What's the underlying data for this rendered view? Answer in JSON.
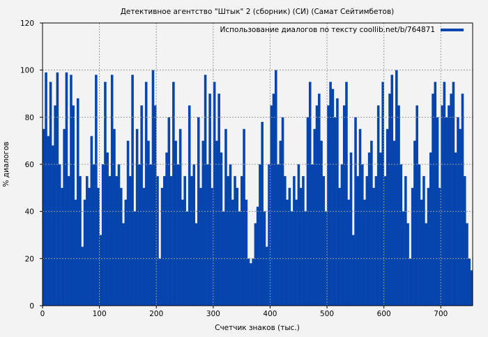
{
  "chart_data": {
    "type": "bar",
    "title": "Детективное агентство \"Штык\" 2 (сборник) (СИ) (Самат Сейтимбетов)",
    "xlabel": "Счетчик знаков (тыс.)",
    "ylabel": "% диалогов",
    "xlim": [
      0,
      756
    ],
    "ylim": [
      0,
      120
    ],
    "xticks": [
      0,
      100,
      200,
      300,
      400,
      500,
      600,
      700
    ],
    "yticks": [
      0,
      20,
      40,
      60,
      80,
      100,
      120
    ],
    "grid": true,
    "legend_position": "top-right",
    "bar_color": "#0645ad",
    "x_step": 4,
    "series": [
      {
        "name": "Использование диалогов по тексту coollib.net/b/764871",
        "x_start": 0,
        "values": [
          75,
          99,
          72,
          95,
          68,
          85,
          99,
          60,
          50,
          75,
          99,
          55,
          98,
          85,
          45,
          88,
          55,
          25,
          45,
          55,
          50,
          72,
          60,
          98,
          50,
          30,
          60,
          95,
          65,
          55,
          98,
          75,
          55,
          60,
          50,
          35,
          45,
          70,
          55,
          98,
          40,
          75,
          60,
          85,
          50,
          95,
          70,
          60,
          100,
          85,
          55,
          20,
          50,
          55,
          65,
          80,
          55,
          95,
          70,
          60,
          75,
          45,
          55,
          40,
          85,
          55,
          60,
          35,
          80,
          50,
          70,
          98,
          60,
          90,
          50,
          95,
          70,
          90,
          65,
          40,
          75,
          55,
          60,
          45,
          55,
          50,
          40,
          55,
          75,
          45,
          20,
          18,
          20,
          35,
          42,
          60,
          78,
          40,
          25,
          60,
          85,
          90,
          100,
          60,
          70,
          80,
          55,
          45,
          50,
          40,
          55,
          45,
          60,
          50,
          55,
          40,
          80,
          95,
          60,
          75,
          85,
          90,
          70,
          55,
          40,
          85,
          95,
          92,
          80,
          88,
          50,
          60,
          85,
          95,
          45,
          65,
          30,
          80,
          55,
          75,
          60,
          45,
          55,
          65,
          70,
          50,
          55,
          85,
          65,
          95,
          55,
          75,
          90,
          98,
          70,
          100,
          85,
          60,
          40,
          55,
          35,
          20,
          50,
          70,
          85,
          60,
          45,
          55,
          35,
          50,
          65,
          90,
          95,
          80,
          50,
          85,
          95,
          80,
          85,
          90,
          95,
          65,
          80,
          75,
          90,
          55,
          35,
          20,
          15,
          45
        ]
      }
    ]
  }
}
